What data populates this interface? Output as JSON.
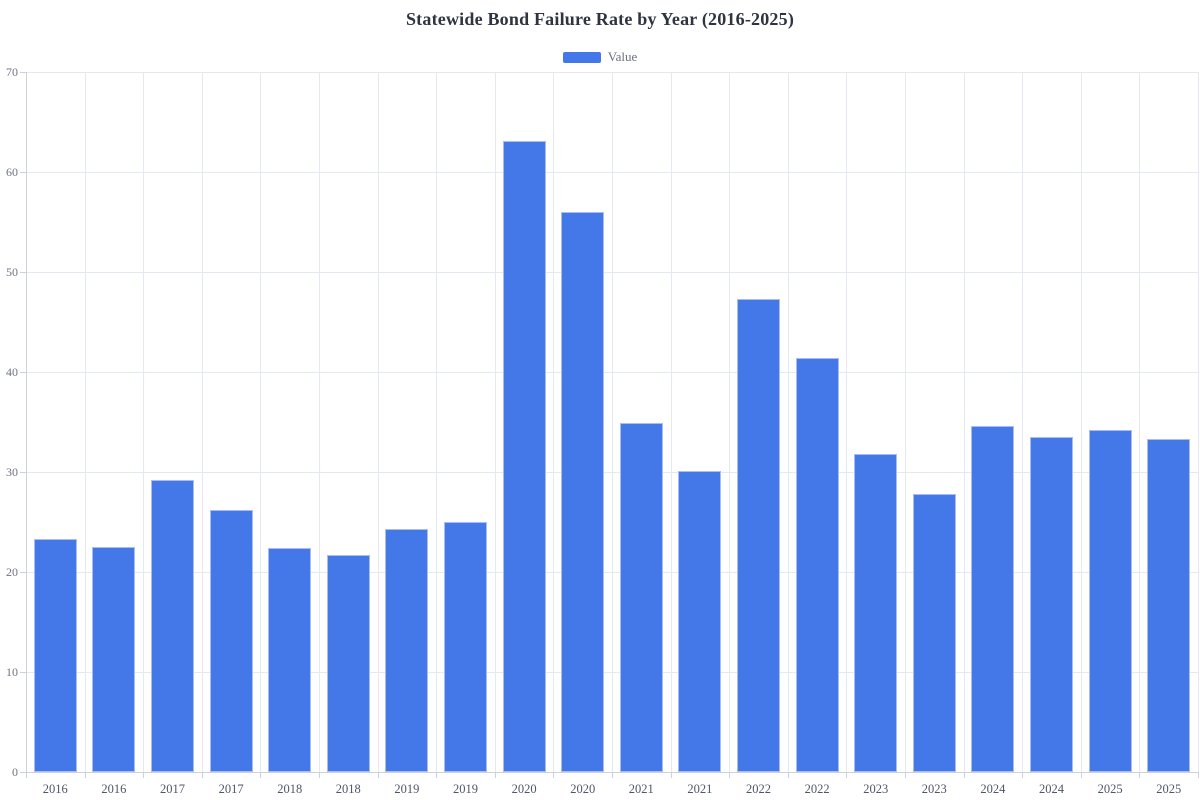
{
  "title": "Statewide Bond Failure Rate by Year (2016-2025)",
  "legend": {
    "label": "Value",
    "swatch_color": "#4478e8"
  },
  "colors": {
    "bar_fill": "#4478e8",
    "bar_border": "#a8bef2",
    "gridline": "#e4e8f1",
    "axis_line": "#ccd1dc",
    "title_text": "#2e3440",
    "y_label_text": "#6e7380",
    "x_label_text": "#4f566a"
  },
  "chart_data": {
    "type": "bar",
    "title": "Statewide Bond Failure Rate by Year (2016-2025)",
    "xlabel": "",
    "ylabel": "",
    "categories": [
      "2016",
      "2016",
      "2017",
      "2017",
      "2018",
      "2018",
      "2019",
      "2019",
      "2020",
      "2020",
      "2021",
      "2021",
      "2022",
      "2022",
      "2023",
      "2023",
      "2024",
      "2024",
      "2025",
      "2025"
    ],
    "series": [
      {
        "name": "Value",
        "values": [
          23.3,
          22.5,
          29.2,
          26.2,
          22.4,
          21.7,
          24.3,
          25.0,
          63.1,
          56.0,
          34.9,
          30.1,
          47.3,
          41.4,
          31.8,
          27.8,
          34.6,
          33.5,
          34.2,
          33.3
        ]
      }
    ],
    "ylim": [
      0,
      70
    ],
    "yticks": [
      0,
      10,
      20,
      30,
      40,
      50,
      60,
      70
    ],
    "grid": true,
    "legend_position": "top-center"
  }
}
